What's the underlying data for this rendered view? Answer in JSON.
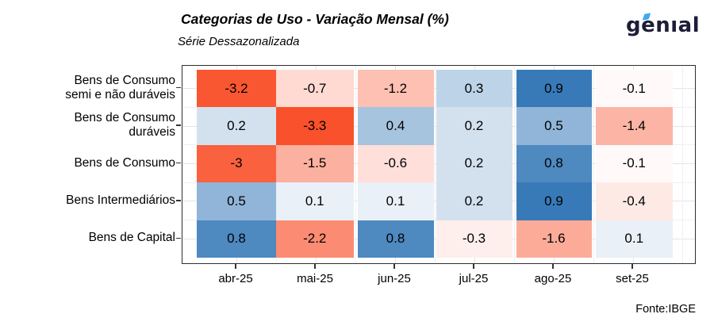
{
  "header": {
    "title": "Categorias de Uso - Variação Mensal (%)",
    "subtitle": "Série Dessazonalizada"
  },
  "logo": {
    "text": "genıal",
    "color": "#1d1d38",
    "accent_color": "#3fa8f0"
  },
  "chart_data": {
    "type": "heatmap",
    "title": "Categorias de Uso - Variação Mensal (%)",
    "subtitle": "Série Dessazonalizada",
    "x_categories": [
      "abr-25",
      "mai-25",
      "jun-25",
      "jul-25",
      "ago-25",
      "set-25"
    ],
    "y_categories": [
      "Bens de Consumo\nsemi e não duráveis",
      "Bens de Consumo\nduráveis",
      "Bens de Consumo",
      "Bens Intermediários",
      "Bens de Capital"
    ],
    "values": [
      [
        -3.2,
        -0.7,
        -1.2,
        0.3,
        0.9,
        -0.1
      ],
      [
        0.2,
        -3.3,
        0.4,
        0.2,
        0.5,
        -1.4
      ],
      [
        -3,
        -1.5,
        -0.6,
        0.2,
        0.8,
        -0.1
      ],
      [
        0.5,
        0.1,
        0.1,
        0.2,
        0.9,
        -0.4
      ],
      [
        0.8,
        -2.2,
        0.8,
        -0.3,
        -1.6,
        0.1
      ]
    ],
    "color_scale": {
      "negative_max": "#f9512c",
      "zero": "#ffffff",
      "positive_max": "#387ab8",
      "domain": [
        -3.3,
        0,
        0.9
      ]
    },
    "legend": "none",
    "grid": true,
    "source": "Fonte:IBGE"
  }
}
